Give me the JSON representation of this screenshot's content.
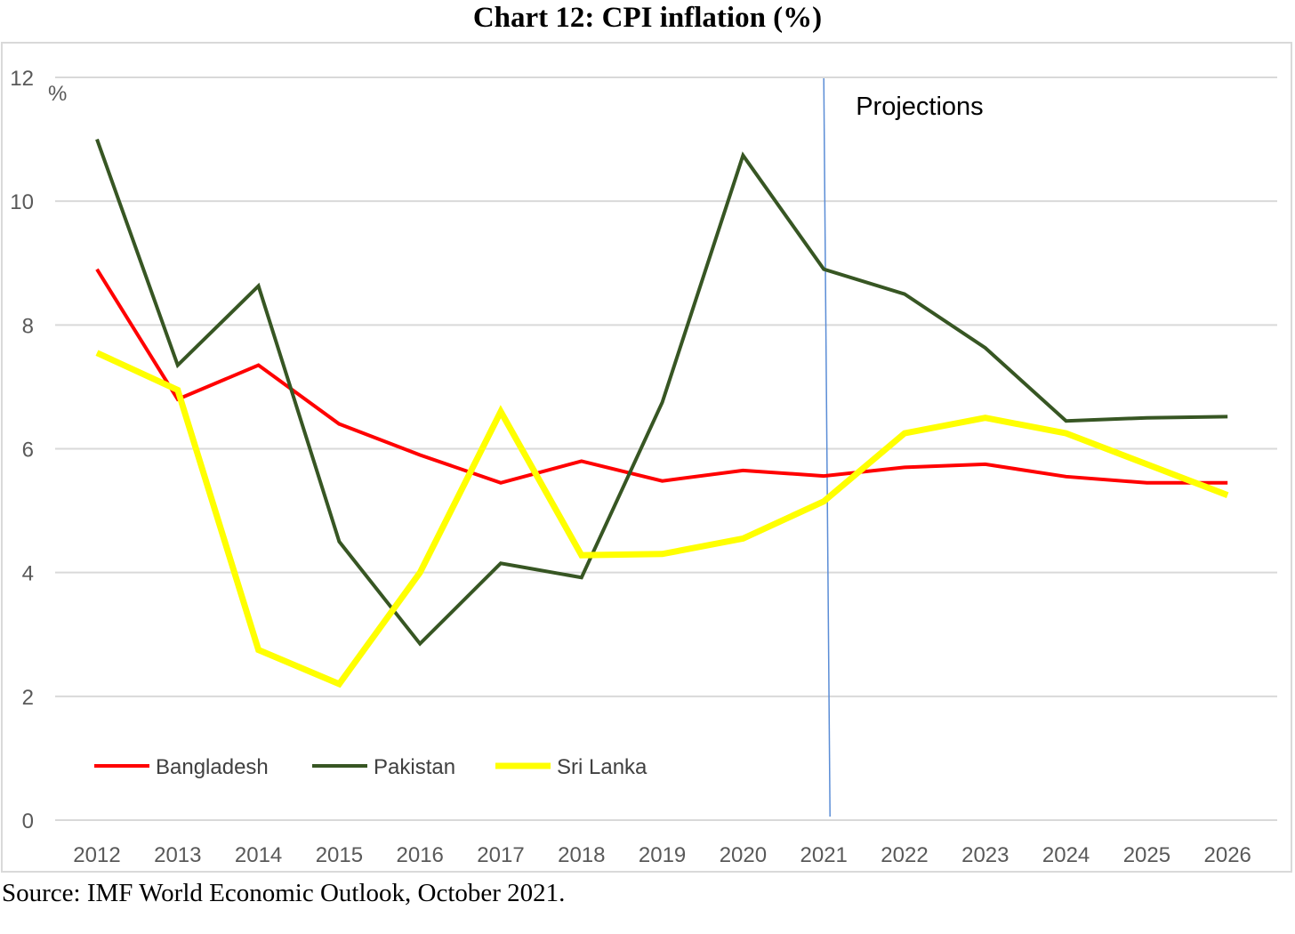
{
  "chart_data": {
    "type": "line",
    "title": "Chart 12: CPI inflation (%)",
    "ylabel": "%",
    "xlabel": "",
    "ylim": [
      0,
      12
    ],
    "yticks": [
      0,
      2,
      4,
      6,
      8,
      10,
      12
    ],
    "grid": true,
    "legend_position": "bottom-left",
    "categories": [
      "2012",
      "2013",
      "2014",
      "2015",
      "2016",
      "2017",
      "2018",
      "2019",
      "2020",
      "2021",
      "2022",
      "2023",
      "2024",
      "2025",
      "2026"
    ],
    "series": [
      {
        "name": "Bangladesh",
        "color": "#ff0000",
        "values": [
          8.9,
          6.8,
          7.35,
          6.4,
          5.9,
          5.45,
          5.8,
          5.48,
          5.65,
          5.56,
          5.7,
          5.75,
          5.55,
          5.45,
          5.45
        ]
      },
      {
        "name": "Pakistan",
        "color": "#375623",
        "values": [
          11.0,
          7.35,
          8.63,
          4.5,
          2.85,
          4.15,
          3.92,
          6.75,
          10.74,
          8.9,
          8.5,
          7.63,
          6.45,
          6.5,
          6.52
        ]
      },
      {
        "name": "Sri Lanka",
        "color": "#ffff00",
        "values": [
          7.55,
          6.95,
          2.75,
          2.2,
          4.0,
          6.6,
          4.28,
          4.3,
          4.55,
          5.15,
          6.25,
          6.5,
          6.25,
          5.75,
          5.25
        ]
      }
    ],
    "annotations": [
      {
        "text": "Projections",
        "at_category": "2021"
      }
    ]
  },
  "source": "Source: IMF World Economic Outlook, October 2021."
}
